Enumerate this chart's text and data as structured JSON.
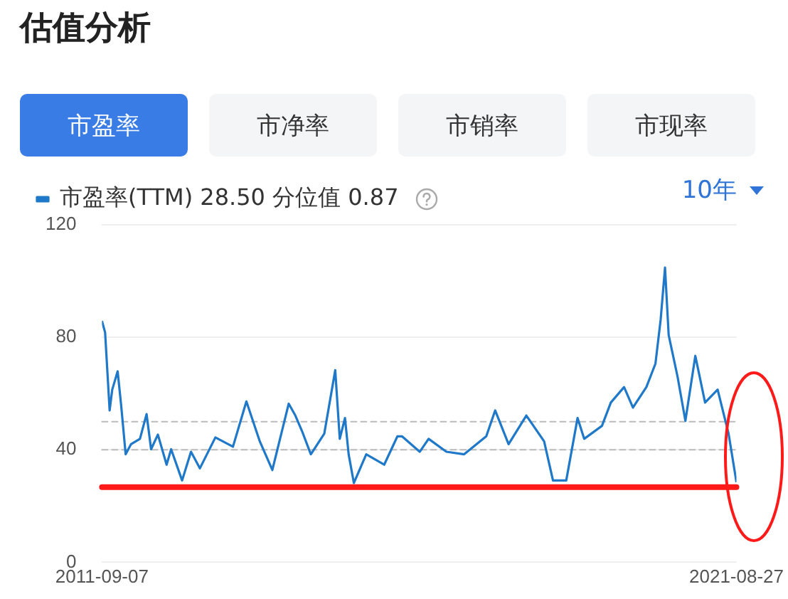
{
  "chart_data": {
    "type": "line",
    "title": "估值分析",
    "annotations": [
      "市盈率",
      "市净率",
      "市销率",
      "市现率",
      "10年"
    ],
    "x": [
      "2011-09-07",
      "2011-09-25",
      "2011-10-21",
      "2011-11-05",
      "2011-12-06",
      "2011-12-26",
      "2012-01-21",
      "2012-02-21",
      "2012-04-12",
      "2012-05-20",
      "2012-06-15",
      "2012-07-24",
      "2012-09-12",
      "2012-10-08",
      "2012-12-10",
      "2013-01-30",
      "2013-03-22",
      "2013-06-19",
      "2013-09-28",
      "2013-12-14",
      "2014-03-01",
      "2014-05-12",
      "2014-08-14",
      "2014-09-21",
      "2014-10-29",
      "2014-12-19",
      "2015-03-06",
      "2015-05-08",
      "2015-06-03",
      "2015-07-03",
      "2015-07-24",
      "2015-08-23",
      "2015-11-02",
      "2016-02-13",
      "2016-04-29",
      "2016-05-25",
      "2016-09-04",
      "2016-10-25",
      "2017-02-04",
      "2017-05-17",
      "2017-09-21",
      "2017-11-11",
      "2018-01-27",
      "2018-05-09",
      "2018-08-19",
      "2018-10-09",
      "2018-12-24",
      "2019-02-27",
      "2019-04-06",
      "2019-07-17",
      "2019-09-06",
      "2019-11-21",
      "2020-01-11",
      "2020-03-28",
      "2020-05-19",
      "2020-06-18",
      "2020-07-13",
      "2020-08-03",
      "2020-09-23",
      "2020-11-07",
      "2021-01-03",
      "2021-02-28",
      "2021-05-11",
      "2021-07-13",
      "2021-08-27"
    ],
    "series": [
      {
        "name": "市盈率(TTM) 28.50 分位值 0.87",
        "color": "#1f78c8",
        "values": [
          85.8,
          81.7,
          54,
          61.4,
          67.9,
          55.9,
          38.4,
          42,
          43.9,
          52.7,
          40.2,
          45.4,
          34.7,
          40.2,
          29.1,
          39.3,
          33.4,
          44.4,
          41.1,
          57.2,
          43,
          32.8,
          56.4,
          52.2,
          46.7,
          38.4,
          45.7,
          68.3,
          43.9,
          51.3,
          38.4,
          28.2,
          38.4,
          34.7,
          44.8,
          44.8,
          39.3,
          43.9,
          39.3,
          38.4,
          44.8,
          54,
          42,
          52.2,
          43,
          29.1,
          29.1,
          51.3,
          43.9,
          48.5,
          56.8,
          62.3,
          55,
          62.3,
          70.6,
          86.3,
          104.8,
          80.8,
          66,
          50.3,
          73.4,
          56.8,
          61.4,
          45.7,
          28.5
        ]
      }
    ],
    "xlim": [
      "2011-09-07",
      "2021-08-27"
    ],
    "xticks": [
      "2011-09-07",
      "2021-08-27"
    ],
    "ylim": [
      0,
      120
    ],
    "yticks": [
      0,
      40,
      80,
      120
    ],
    "grid": "y",
    "legend": "top left",
    "marker": "none",
    "line_style": "solid",
    "ref_lines": [
      {
        "axis": "y",
        "value": 50,
        "color": "#bbbbbb",
        "line_style": "dashed"
      },
      {
        "axis": "y",
        "value": 40,
        "color": "#bbbbbb",
        "line_style": "dashed"
      },
      {
        "axis": "y",
        "value": 26.7,
        "color": "#ff1a1a",
        "line_style": "solid"
      }
    ]
  }
}
